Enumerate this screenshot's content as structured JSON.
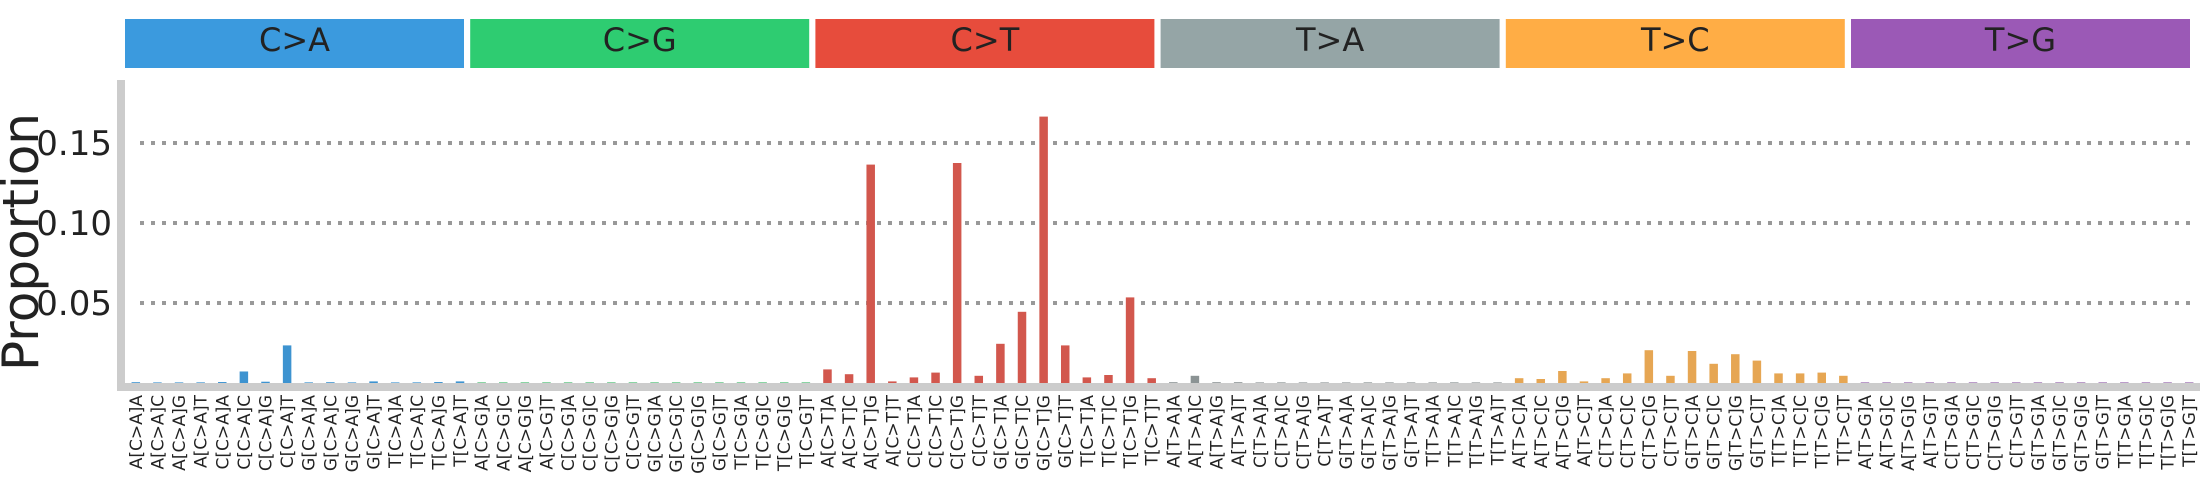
{
  "chart_data": {
    "type": "bar",
    "ylabel": "Proportion",
    "ylim": [
      0,
      0.175
    ],
    "yticks": [
      "0.05",
      "0.10",
      "0.15"
    ],
    "ytick_values": [
      0.05,
      0.1,
      0.15
    ],
    "grid": "horizontal dotted",
    "substitution_categories": [
      {
        "label": "C>A",
        "color": "#3b9ade"
      },
      {
        "label": "C>G",
        "color": "#2ecc71"
      },
      {
        "label": "C>T",
        "color": "#e74c3c"
      },
      {
        "label": "T>A",
        "color": "#95a5a6"
      },
      {
        "label": "T>C",
        "color": "#ffad45"
      },
      {
        "label": "T>G",
        "color": "#9b59b6"
      }
    ],
    "bar_colors": [
      "#3d93d0",
      "#3cb868",
      "#d2574d",
      "#8b9394",
      "#e6a653",
      "#8e5ba6"
    ],
    "categories": [
      "A[C>A]A",
      "A[C>A]C",
      "A[C>A]G",
      "A[C>A]T",
      "C[C>A]A",
      "C[C>A]C",
      "C[C>A]G",
      "C[C>A]T",
      "G[C>A]A",
      "G[C>A]C",
      "G[C>A]G",
      "G[C>A]T",
      "T[C>A]A",
      "T[C>A]C",
      "T[C>A]G",
      "T[C>A]T",
      "A[C>G]A",
      "A[C>G]C",
      "A[C>G]G",
      "A[C>G]T",
      "C[C>G]A",
      "C[C>G]C",
      "C[C>G]G",
      "C[C>G]T",
      "G[C>G]A",
      "G[C>G]C",
      "G[C>G]G",
      "G[C>G]T",
      "T[C>G]A",
      "T[C>G]C",
      "T[C>G]G",
      "T[C>G]T",
      "A[C>T]A",
      "A[C>T]C",
      "A[C>T]G",
      "A[C>T]T",
      "C[C>T]A",
      "C[C>T]C",
      "C[C>T]G",
      "C[C>T]T",
      "G[C>T]A",
      "G[C>T]C",
      "G[C>T]G",
      "G[C>T]T",
      "T[C>T]A",
      "T[C>T]C",
      "T[C>T]G",
      "T[C>T]T",
      "A[T>A]A",
      "A[T>A]C",
      "A[T>A]G",
      "A[T>A]T",
      "C[T>A]A",
      "C[T>A]C",
      "C[T>A]G",
      "C[T>A]T",
      "G[T>A]A",
      "G[T>A]C",
      "G[T>A]G",
      "G[T>A]T",
      "T[T>A]A",
      "T[T>A]C",
      "T[T>A]G",
      "T[T>A]T",
      "A[T>C]A",
      "A[T>C]C",
      "A[T>C]G",
      "A[T>C]T",
      "C[T>C]A",
      "C[T>C]C",
      "C[T>C]G",
      "C[T>C]T",
      "G[T>C]A",
      "G[T>C]C",
      "G[T>C]G",
      "G[T>C]T",
      "T[T>C]A",
      "T[T>C]C",
      "T[T>C]G",
      "T[T>C]T",
      "A[T>G]A",
      "A[T>G]C",
      "A[T>G]G",
      "A[T>G]T",
      "C[T>G]A",
      "C[T>G]C",
      "C[T>G]G",
      "C[T>G]T",
      "G[T>G]A",
      "G[T>G]C",
      "G[T>G]G",
      "G[T>G]T",
      "T[T>G]A",
      "T[T>G]C",
      "T[T>G]G",
      "T[T>G]T"
    ],
    "values": [
      0.0005,
      0.0003,
      0.0003,
      0.0004,
      0.0006,
      0.0072,
      0.0008,
      0.0235,
      0.0004,
      0.0005,
      0.0003,
      0.001,
      0.0003,
      0.0004,
      0.0006,
      0.001,
      0.0002,
      0.0001,
      0.0002,
      0.0001,
      0.0002,
      0.0001,
      0.0002,
      0.0001,
      0.0002,
      0.0001,
      0.0002,
      0.0001,
      0.0002,
      0.0001,
      0.0002,
      0.0001,
      0.0085,
      0.0055,
      0.1365,
      0.001,
      0.0035,
      0.0065,
      0.1375,
      0.0045,
      0.0245,
      0.0445,
      0.1665,
      0.0235,
      0.0035,
      0.005,
      0.0535,
      0.003,
      0.0005,
      0.0045,
      0.0005,
      0.0005,
      0.0003,
      0.0004,
      0.0003,
      0.0003,
      0.0003,
      0.0004,
      0.0003,
      0.0003,
      0.0003,
      0.0004,
      0.0003,
      0.0003,
      0.003,
      0.0025,
      0.0075,
      0.001,
      0.003,
      0.006,
      0.0205,
      0.0045,
      0.02,
      0.012,
      0.018,
      0.014,
      0.006,
      0.006,
      0.0065,
      0.0045,
      0.0002,
      0.0002,
      0.0002,
      0.0002,
      0.0002,
      0.0002,
      0.0002,
      0.0002,
      0.0002,
      0.0002,
      0.0002,
      0.0002,
      0.0002,
      0.0002,
      0.0002,
      0.0002
    ]
  }
}
